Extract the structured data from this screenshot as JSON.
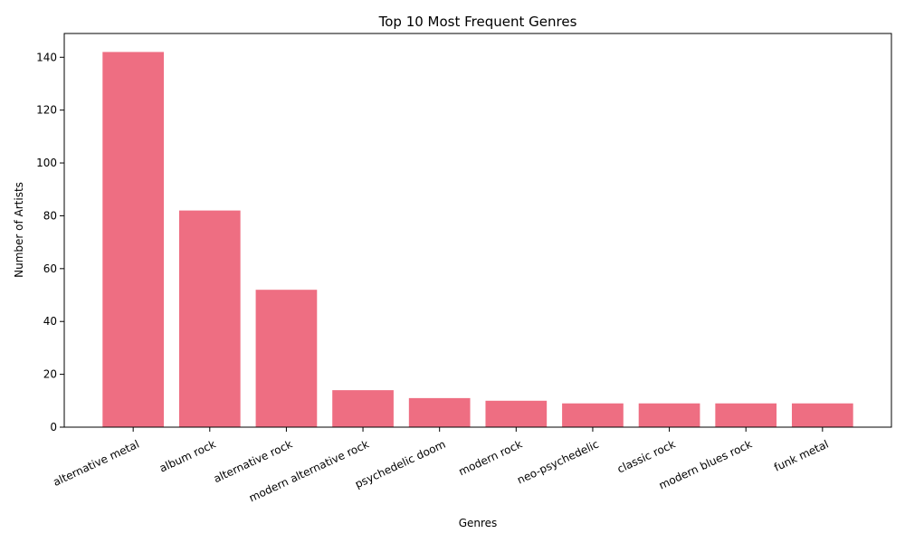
{
  "chart_data": {
    "type": "bar",
    "title": "Top 10 Most Frequent Genres",
    "xlabel": "Genres",
    "ylabel": "Number of Artists",
    "categories": [
      "alternative metal",
      "album rock",
      "alternative rock",
      "modern alternative rock",
      "psychedelic doom",
      "modern rock",
      "neo-psychedelic",
      "classic rock",
      "modern blues rock",
      "funk metal"
    ],
    "values": [
      142,
      82,
      52,
      14,
      11,
      10,
      9,
      9,
      9,
      9
    ],
    "ylim": [
      0,
      149
    ],
    "yticks": [
      0,
      20,
      40,
      60,
      80,
      100,
      120,
      140
    ],
    "bar_color": "#ee6e82",
    "grid": false,
    "legend": "none"
  }
}
